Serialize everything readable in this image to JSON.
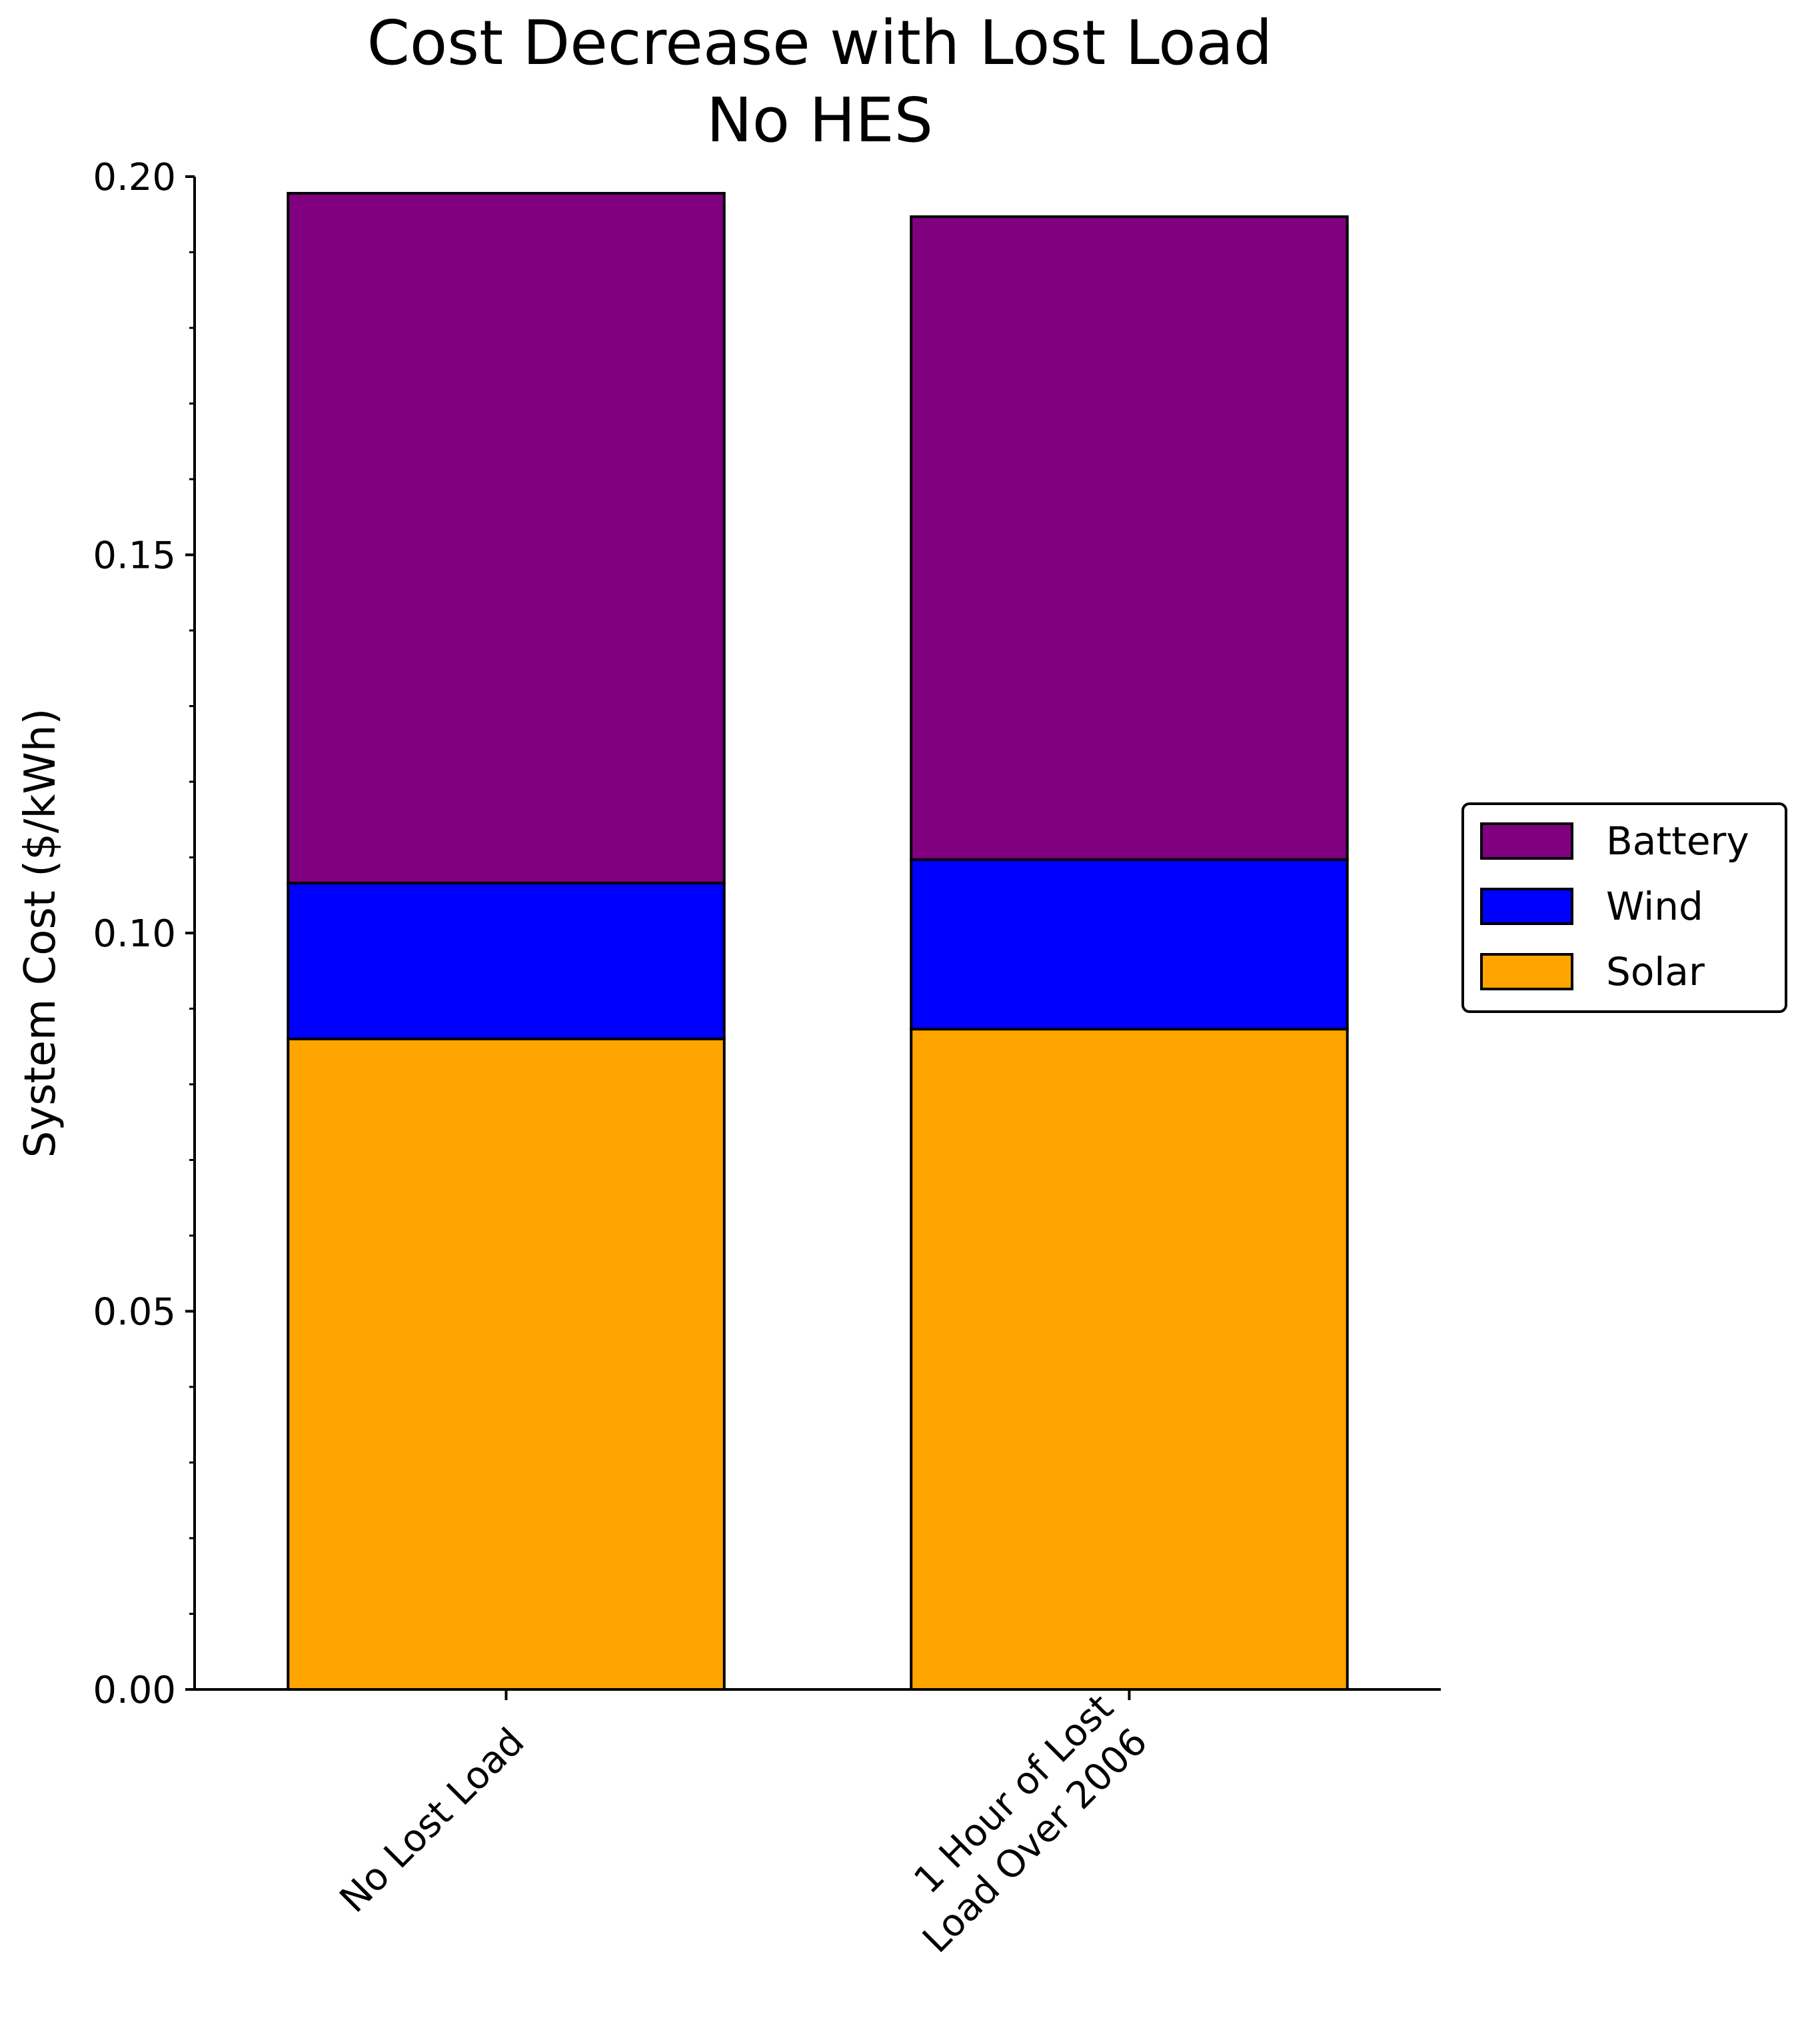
{
  "chart_data": {
    "type": "bar",
    "stacked": true,
    "title": "Cost Decrease with Lost Load",
    "subtitle": "No HES",
    "xlabel": "",
    "ylabel": "System Cost ($/kWh)",
    "categories": [
      "No Lost Load",
      "1 Hour of Lost\nLoad Over 2006"
    ],
    "ylim": [
      0,
      0.2
    ],
    "yticks": [
      "0.00",
      "0.05",
      "0.10",
      "0.15",
      "0.20"
    ],
    "grid": false,
    "legend_position": "right",
    "legend_order": [
      "Battery",
      "Wind",
      "Solar"
    ],
    "series": [
      {
        "name": "Solar",
        "color": "#FFA500",
        "values": [
          0.086,
          0.0873
        ]
      },
      {
        "name": "Wind",
        "color": "#0000FF",
        "values": [
          0.0206,
          0.0224
        ]
      },
      {
        "name": "Battery",
        "color": "#800080",
        "values": [
          0.0912,
          0.085
        ]
      }
    ]
  }
}
